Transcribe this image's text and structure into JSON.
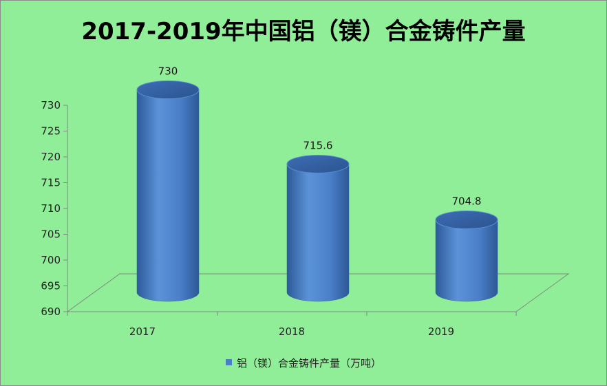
{
  "chart_data": {
    "type": "bar",
    "title": "2017-2019年中国铝（镁）合金铸件产量",
    "categories": [
      "2017",
      "2018",
      "2019"
    ],
    "series": [
      {
        "name": "铝（镁）合金铸件产量（万吨）",
        "values": [
          730,
          715.6,
          704.8
        ]
      }
    ],
    "data_labels": [
      "730",
      "715.6",
      "704.8"
    ],
    "yticks": [
      690,
      695,
      700,
      705,
      710,
      715,
      720,
      725,
      730
    ],
    "ylim": [
      690,
      730
    ],
    "xlabel": "",
    "ylabel": "",
    "legend_position": "bottom",
    "bar_color": "#4a7fc8",
    "background_color": "#90ee98",
    "grid": false,
    "style": "3d-cylinder"
  }
}
